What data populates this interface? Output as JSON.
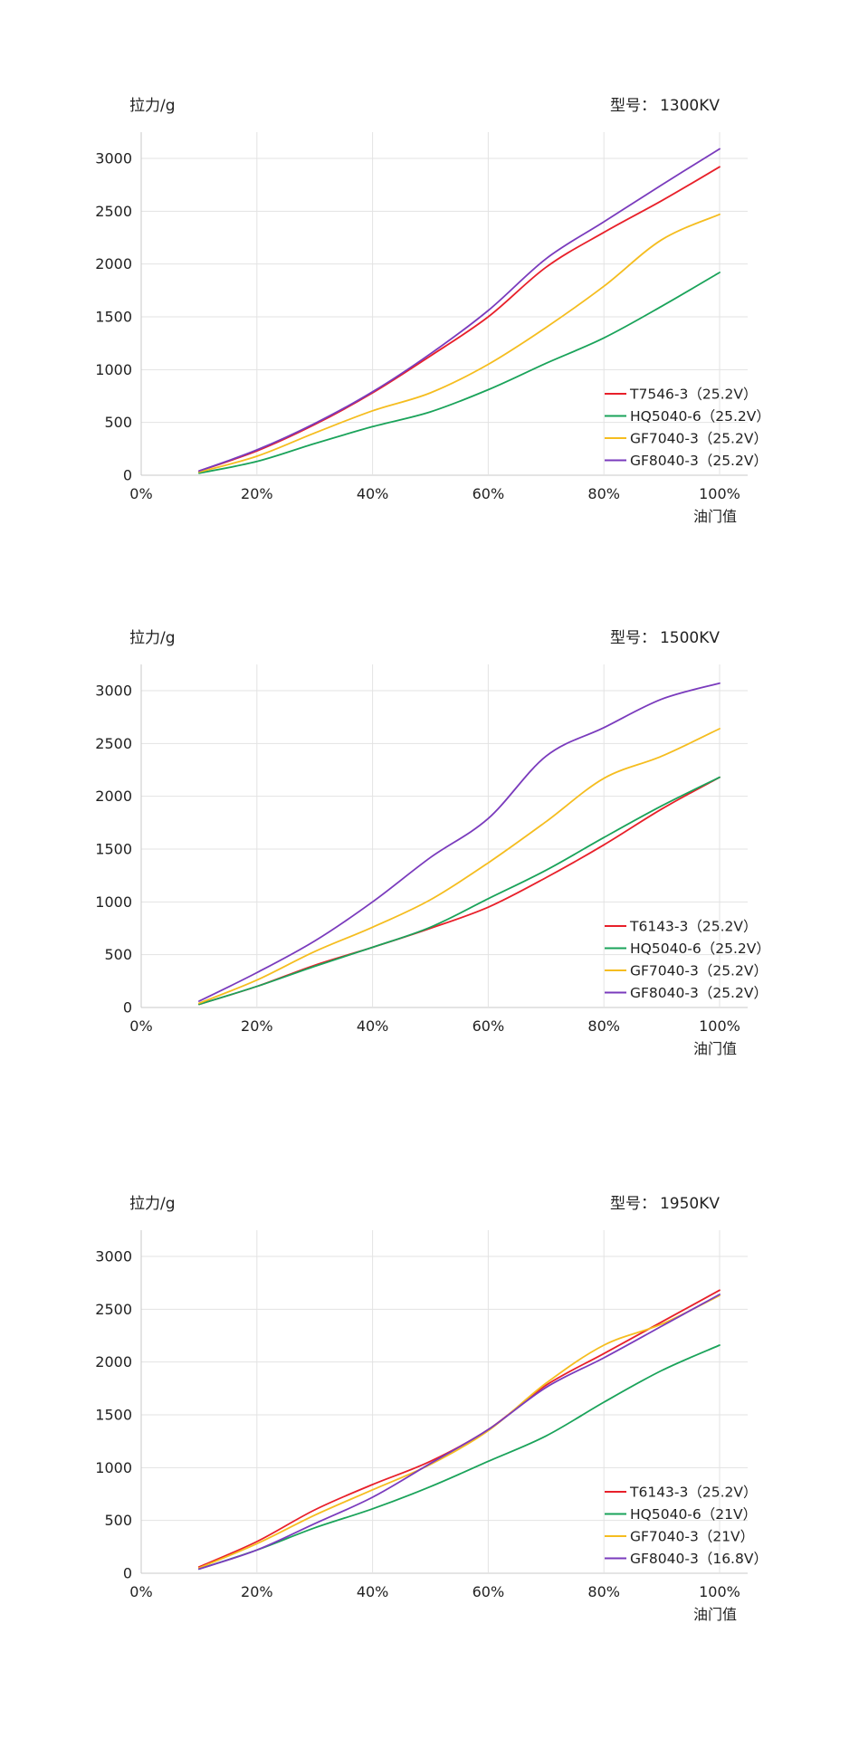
{
  "chart_data": [
    {
      "type": "line",
      "title": "型号： 1300KV",
      "title_prefix": "型号：",
      "title_value": "1300KV",
      "ylabel": "拉力/g",
      "xlabel": "油门值",
      "x": [
        10,
        20,
        30,
        40,
        50,
        60,
        70,
        80,
        90,
        100
      ],
      "xlim": [
        0,
        100
      ],
      "ylim": [
        0,
        3000
      ],
      "xticks": [
        "0%",
        "20%",
        "40%",
        "60%",
        "80%",
        "100%"
      ],
      "yticks": [
        "0",
        "500",
        "1000",
        "1500",
        "2000",
        "2500",
        "3000"
      ],
      "grid": true,
      "legend_position": "lower-right",
      "series": [
        {
          "name": "T7546-3（25.2V）",
          "color": "#e8202a",
          "values": [
            40,
            230,
            480,
            780,
            1130,
            1500,
            1970,
            2300,
            2600,
            2920
          ]
        },
        {
          "name": "HQ5040-6（25.2V）",
          "color": "#1aa35a",
          "values": [
            20,
            130,
            300,
            460,
            600,
            810,
            1060,
            1300,
            1600,
            1920
          ]
        },
        {
          "name": "GF7040-3（25.2V）",
          "color": "#f5bd1f",
          "values": [
            30,
            180,
            400,
            610,
            780,
            1050,
            1400,
            1790,
            2230,
            2470
          ]
        },
        {
          "name": "GF8040-3（25.2V）",
          "color": "#7a3bbd",
          "values": [
            40,
            240,
            490,
            790,
            1150,
            1560,
            2050,
            2400,
            2750,
            3090
          ]
        }
      ]
    },
    {
      "type": "line",
      "title": "型号： 1500KV",
      "title_prefix": "型号：",
      "title_value": "1500KV",
      "ylabel": "拉力/g",
      "xlabel": "油门值",
      "x": [
        10,
        20,
        30,
        40,
        50,
        60,
        70,
        80,
        90,
        100
      ],
      "xlim": [
        0,
        100
      ],
      "ylim": [
        0,
        3000
      ],
      "xticks": [
        "0%",
        "20%",
        "40%",
        "60%",
        "80%",
        "100%"
      ],
      "yticks": [
        "0",
        "500",
        "1000",
        "1500",
        "2000",
        "2500",
        "3000"
      ],
      "grid": true,
      "legend_position": "lower-right",
      "series": [
        {
          "name": "T6143-3（25.2V）",
          "color": "#e8202a",
          "values": [
            30,
            200,
            400,
            570,
            750,
            950,
            1230,
            1540,
            1880,
            2180
          ]
        },
        {
          "name": "HQ5040-6（25.2V）",
          "color": "#1aa35a",
          "values": [
            30,
            200,
            390,
            570,
            760,
            1030,
            1300,
            1610,
            1910,
            2180
          ]
        },
        {
          "name": "GF7040-3（25.2V）",
          "color": "#f5bd1f",
          "values": [
            40,
            260,
            530,
            760,
            1020,
            1370,
            1760,
            2170,
            2380,
            2640
          ]
        },
        {
          "name": "GF8040-3（25.2V）",
          "color": "#7a3bbd",
          "values": [
            60,
            330,
            630,
            1000,
            1420,
            1790,
            2380,
            2650,
            2920,
            3070
          ]
        }
      ]
    },
    {
      "type": "line",
      "title": "型号： 1950KV",
      "title_prefix": "型号：",
      "title_value": "1950KV",
      "ylabel": "拉力/g",
      "xlabel": "油门值",
      "x": [
        10,
        20,
        30,
        40,
        50,
        60,
        70,
        80,
        90,
        100
      ],
      "xlim": [
        0,
        100
      ],
      "ylim": [
        0,
        3000
      ],
      "xticks": [
        "0%",
        "20%",
        "40%",
        "60%",
        "80%",
        "100%"
      ],
      "yticks": [
        "0",
        "500",
        "1000",
        "1500",
        "2000",
        "2500",
        "3000"
      ],
      "grid": true,
      "legend_position": "lower-right",
      "series": [
        {
          "name": "T6143-3（25.2V）",
          "color": "#e8202a",
          "values": [
            60,
            300,
            600,
            840,
            1060,
            1360,
            1780,
            2080,
            2380,
            2680
          ]
        },
        {
          "name": "HQ5040-6（21V）",
          "color": "#1aa35a",
          "values": [
            40,
            220,
            430,
            610,
            820,
            1060,
            1300,
            1620,
            1920,
            2160
          ]
        },
        {
          "name": "GF7040-3（21V）",
          "color": "#f5bd1f",
          "values": [
            50,
            280,
            550,
            790,
            1030,
            1350,
            1800,
            2160,
            2360,
            2630
          ]
        },
        {
          "name": "GF8040-3（16.8V）",
          "color": "#7a3bbd",
          "values": [
            40,
            220,
            470,
            720,
            1040,
            1360,
            1760,
            2040,
            2340,
            2640
          ]
        }
      ]
    }
  ]
}
